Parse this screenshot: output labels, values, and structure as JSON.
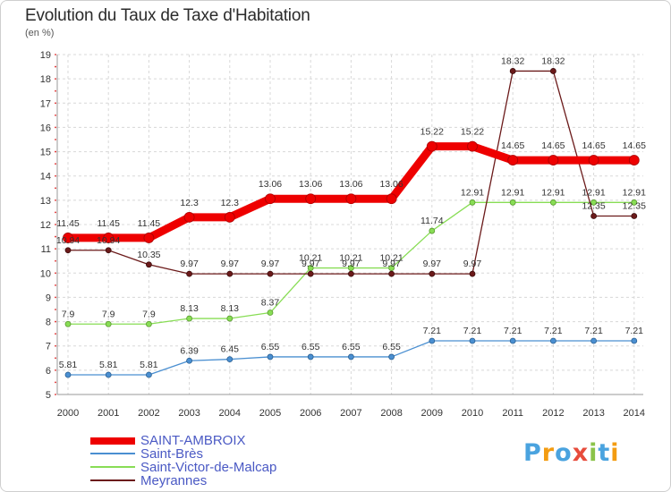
{
  "header": {
    "title": "Evolution du Taux de Taxe d'Habitation",
    "subtitle": "(en %)"
  },
  "chart_data": {
    "type": "line",
    "title": "Evolution du Taux de Taxe d'Habitation",
    "subtitle": "(en %)",
    "x": [
      "2000",
      "2001",
      "2002",
      "2003",
      "2004",
      "2005",
      "2006",
      "2007",
      "2008",
      "2009",
      "2010",
      "2011",
      "2012",
      "2013",
      "2014"
    ],
    "ylim": [
      5,
      19
    ],
    "yticks": [
      "5",
      "6",
      "7",
      "8",
      "9",
      "10",
      "11",
      "12",
      "13",
      "14",
      "15",
      "16",
      "17",
      "18",
      "19"
    ],
    "grid": true,
    "legend_position": "bottom-left",
    "series": [
      {
        "name": "SAINT-AMBROIX",
        "color": "#ee0000",
        "values": [
          11.45,
          11.45,
          11.45,
          12.3,
          12.3,
          13.06,
          13.06,
          13.06,
          13.06,
          15.22,
          15.22,
          14.65,
          14.65,
          14.65,
          14.65
        ],
        "labels": [
          "11.45",
          "11.45",
          "11.45",
          "12.3",
          "12.3",
          "13.06",
          "13.06",
          "13.06",
          "13.06",
          "15.22",
          "15.22",
          "14.65",
          "14.65",
          "14.65",
          "14.65"
        ]
      },
      {
        "name": "Saint-Brès",
        "color": "#4a8fd1",
        "values": [
          5.81,
          5.81,
          5.81,
          6.39,
          6.45,
          6.55,
          6.55,
          6.55,
          6.55,
          7.21,
          7.21,
          7.21,
          7.21,
          7.21,
          7.21
        ],
        "labels": [
          "5.81",
          "5.81",
          "5.81",
          "6.39",
          "6.45",
          "6.55",
          "6.55",
          "6.55",
          "6.55",
          "7.21",
          "7.21",
          "7.21",
          "7.21",
          "7.21",
          "7.21"
        ]
      },
      {
        "name": "Saint-Victor-de-Malcap",
        "color": "#88dd55",
        "values": [
          7.9,
          7.9,
          7.9,
          8.13,
          8.13,
          8.37,
          10.21,
          10.21,
          10.21,
          11.74,
          12.91,
          12.91,
          12.91,
          12.91,
          12.91
        ],
        "labels": [
          "7.9",
          "7.9",
          "7.9",
          "8.13",
          "8.13",
          "8.37",
          "10.21",
          "10.21",
          "10.21",
          "11.74",
          "12.91",
          "12.91",
          "12.91",
          "12.91",
          "12.91"
        ]
      },
      {
        "name": "Meyrannes",
        "color": "#6b1a1a",
        "values": [
          10.94,
          10.94,
          10.35,
          9.97,
          9.97,
          9.97,
          9.97,
          9.97,
          9.97,
          9.97,
          9.97,
          18.32,
          18.32,
          12.35,
          12.35
        ],
        "labels": [
          "10.94",
          "10.94",
          "10.35",
          "9.97",
          "9.97",
          "9.97",
          "9.97",
          "9.97",
          "9.97",
          "9.97",
          "9.97",
          "18.32",
          "18.32",
          "12.35",
          "12.35"
        ]
      }
    ]
  },
  "legend": {
    "items": [
      {
        "label": "SAINT-AMBROIX",
        "color": "#ee0000"
      },
      {
        "label": "Saint-Brès",
        "color": "#4a8fd1"
      },
      {
        "label": "Saint-Victor-de-Malcap",
        "color": "#88dd55"
      },
      {
        "label": "Meyrannes",
        "color": "#6b1a1a"
      }
    ]
  },
  "logo": {
    "text": "Proxiti",
    "letters": [
      "P",
      "r",
      "o",
      "x",
      "i",
      "t",
      "i"
    ],
    "colors": [
      "#4aa3df",
      "#f39c12",
      "#4aa3df",
      "#e74c3c",
      "#8bc34a",
      "#4aa3df",
      "#f39c12"
    ]
  }
}
